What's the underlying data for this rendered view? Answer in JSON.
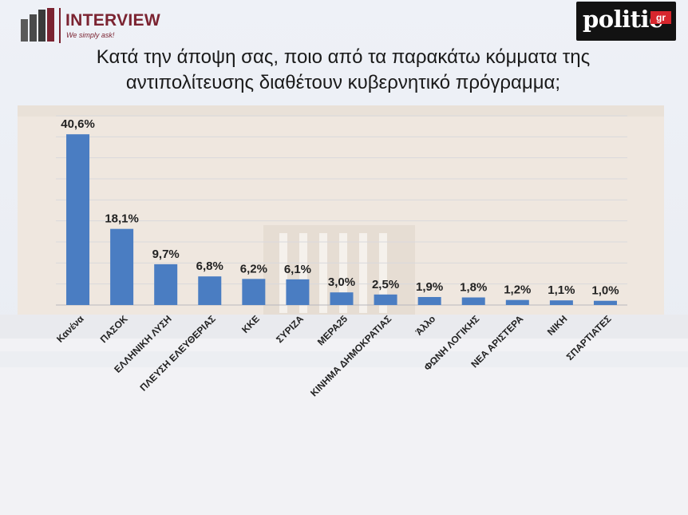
{
  "header": {
    "interview_brand": "INTERVIEW",
    "interview_tagline": "We simply ask!",
    "politic_brand": "politic",
    "politic_suffix": "gr"
  },
  "colors": {
    "bar": "#4a7dc2",
    "brand": "#7b2331"
  },
  "chart_data": {
    "type": "bar",
    "title": "Κατά την άποψη σας, ποιο από τα παρακάτω κόμματα της αντιπολίτευσης διαθέτουν κυβερνητικό πρόγραμμα;",
    "categories": [
      "Κανένα",
      "ΠΑΣΟΚ",
      "ΕΛΛΗΝΙΚΗ ΛΥΣΗ",
      "ΠΛΕΥΣΗ ΕΛΕΥΘΕΡΙΑΣ",
      "ΚΚΕ",
      "ΣΥΡΙΖΑ",
      "ΜΕΡΑ25",
      "ΚΙΝΗΜΑ ΔΗΜΟΚΡΑΤΙΑΣ",
      "Άλλο",
      "ΦΩΝΗ ΛΟΓΙΚΗΣ",
      "ΝΕΑ ΑΡΙΣΤΕΡΑ",
      "ΝΙΚΗ",
      "ΣΠΑΡΤΙΑΤΕΣ"
    ],
    "values": [
      40.6,
      18.1,
      9.7,
      6.8,
      6.2,
      6.1,
      3.0,
      2.5,
      1.9,
      1.8,
      1.2,
      1.1,
      1.0
    ],
    "labels": [
      "40,6%",
      "18,1%",
      "9,7%",
      "6,8%",
      "6,2%",
      "6,1%",
      "3,0%",
      "2,5%",
      "1,9%",
      "1,8%",
      "1,2%",
      "1,1%",
      "1,0%"
    ],
    "ylim": [
      0,
      45
    ],
    "grid": true,
    "legend": "none"
  }
}
